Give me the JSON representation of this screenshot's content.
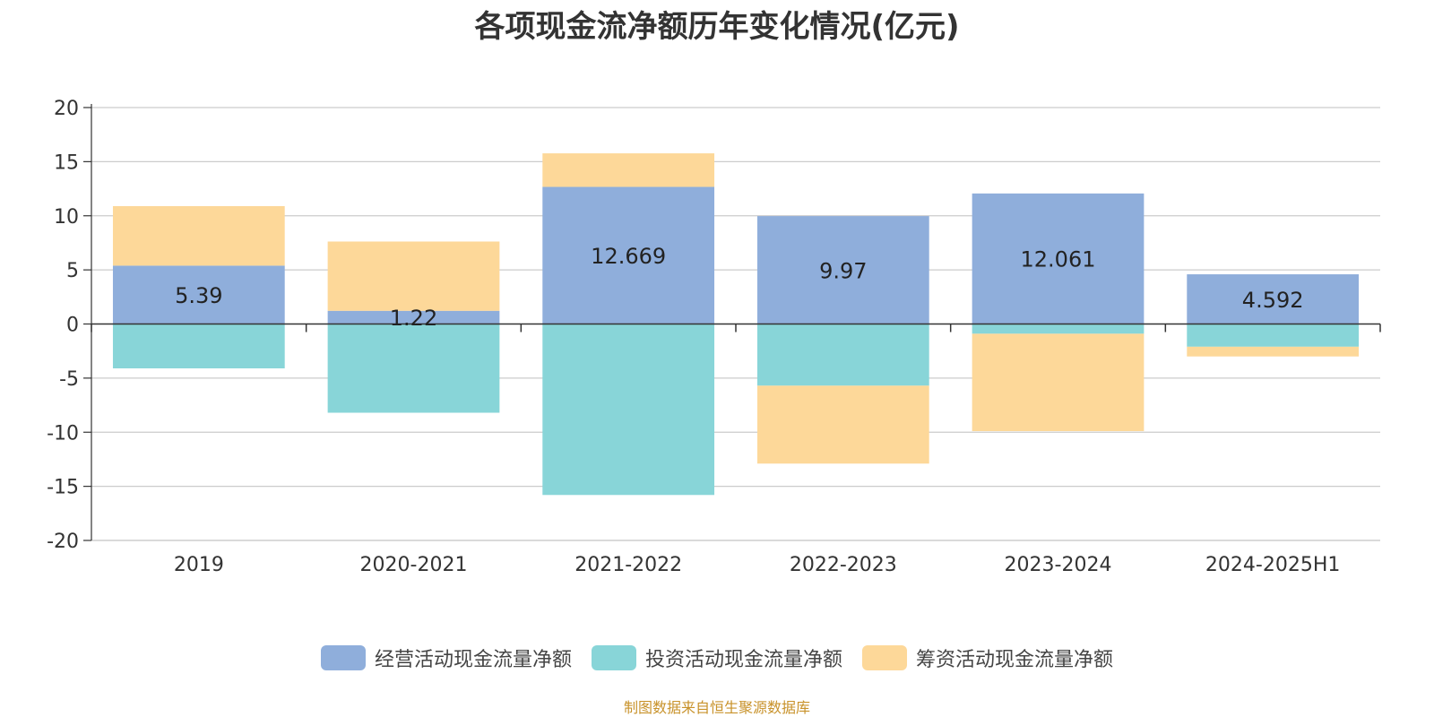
{
  "chart_data": {
    "type": "bar",
    "stacked": true,
    "title": "各项现金流净额历年变化情况(亿元)",
    "categories": [
      "2019",
      "2020-2021",
      "2021-2022",
      "2022-2023",
      "2023-2024",
      "2024-2025H1"
    ],
    "series": [
      {
        "name": "经营活动现金流量净额",
        "color": "#8faedb",
        "values": [
          5.39,
          1.22,
          12.669,
          9.97,
          12.061,
          4.592
        ],
        "labels_shown": true
      },
      {
        "name": "投资活动现金流量净额",
        "color": "#88d5d8",
        "values": [
          -4.1,
          -8.2,
          -15.8,
          -5.7,
          -0.9,
          -2.1
        ],
        "labels_shown": false
      },
      {
        "name": "筹资活动现金流量净额",
        "color": "#fdd899",
        "values": [
          5.5,
          6.4,
          3.1,
          -7.2,
          -9.0,
          -0.9
        ],
        "labels_shown": false
      }
    ],
    "ylim": [
      -20,
      20
    ],
    "yticks": [
      20,
      15,
      10,
      5,
      0,
      -5,
      -10,
      -15,
      -20
    ],
    "grid": true,
    "legend": "bottom-center",
    "xlabel": "",
    "ylabel": ""
  },
  "source": {
    "text": "制图数据来自恒生聚源数据库",
    "color": "#c8922a"
  }
}
